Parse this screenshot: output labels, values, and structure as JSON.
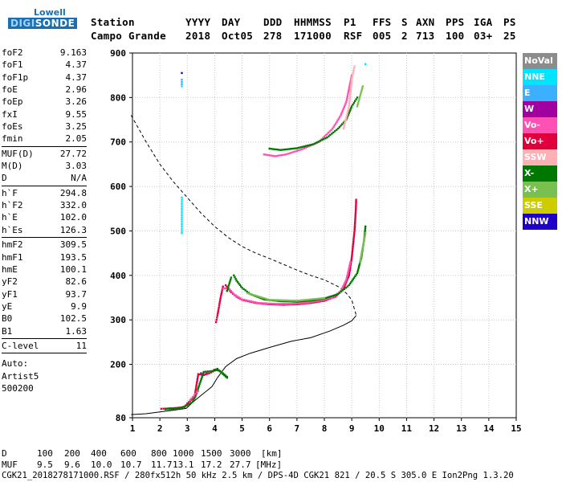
{
  "logo": {
    "line1": "Lowell",
    "line2_a": "DIGI",
    "line2_b": "SONDE"
  },
  "header": {
    "labels": [
      "Station",
      "YYYY",
      "DAY",
      "DDD",
      "HHMMSS",
      "P1",
      "FFS",
      "S",
      "AXN",
      "PPS",
      "IGA",
      "PS"
    ],
    "values": [
      "Campo Grande",
      "2018",
      "Oct05",
      "278",
      "171000",
      "RSF",
      "005",
      "2",
      "713",
      "100",
      "03+",
      "25"
    ]
  },
  "params": [
    {
      "group": [
        {
          "name": "foF2",
          "value": "9.163"
        },
        {
          "name": "foF1",
          "value": "4.37"
        },
        {
          "name": "foF1p",
          "value": "4.37"
        },
        {
          "name": "foE",
          "value": "2.96"
        },
        {
          "name": "foEp",
          "value": "3.26"
        },
        {
          "name": "fxI",
          "value": "9.55"
        },
        {
          "name": "foEs",
          "value": "3.25"
        },
        {
          "name": "fmin",
          "value": "2.05"
        }
      ]
    },
    {
      "group": [
        {
          "name": "MUF(D)",
          "value": "27.72"
        },
        {
          "name": "M(D)",
          "value": "3.03"
        },
        {
          "name": "D",
          "value": "N/A"
        }
      ]
    },
    {
      "group": [
        {
          "name": "h`F",
          "value": "294.8"
        },
        {
          "name": "h`F2",
          "value": "332.0"
        },
        {
          "name": "h`E",
          "value": "102.0"
        },
        {
          "name": "h`Es",
          "value": "126.3"
        }
      ]
    },
    {
      "group": [
        {
          "name": "hmF2",
          "value": "309.5"
        },
        {
          "name": "hmF1",
          "value": "193.5"
        },
        {
          "name": "hmE",
          "value": "100.1"
        },
        {
          "name": "yF2",
          "value": "82.6"
        },
        {
          "name": "yF1",
          "value": "93.7"
        },
        {
          "name": "yE",
          "value": "9.9"
        },
        {
          "name": "B0",
          "value": "102.5"
        },
        {
          "name": "B1",
          "value": "1.63"
        }
      ]
    },
    {
      "group": [
        {
          "name": "C-level",
          "value": "11"
        }
      ]
    },
    {
      "group": [
        {
          "name": "Auto:",
          "value": ""
        },
        {
          "name": "Artist5",
          "value": ""
        },
        {
          "name": "500200",
          "value": ""
        }
      ]
    }
  ],
  "legend": [
    {
      "label": "NoVal",
      "color": "#8c8c8c"
    },
    {
      "label": "NNE",
      "color": "#00e5ff"
    },
    {
      "label": "E",
      "color": "#3ab0ff"
    },
    {
      "label": "W",
      "color": "#a000a0"
    },
    {
      "label": "Vo-",
      "color": "#ff50b4"
    },
    {
      "label": "Vo+",
      "color": "#e0003c"
    },
    {
      "label": "SSW",
      "color": "#ffb0b4"
    },
    {
      "label": "X-",
      "color": "#007800"
    },
    {
      "label": "X+",
      "color": "#78c050"
    },
    {
      "label": "SSE",
      "color": "#cccc00"
    },
    {
      "label": "NNW",
      "color": "#1e00c8"
    }
  ],
  "footer": {
    "d_label": "D",
    "d_values": [
      "100",
      "200",
      "400",
      "600",
      "800",
      "1000",
      "1500",
      "3000"
    ],
    "d_unit": "[km]",
    "muf_label": "MUF",
    "muf_values": [
      "9.5",
      "9.6",
      "10.0",
      "10.7",
      "11.7",
      "13.1",
      "17.2",
      "27.7"
    ],
    "muf_unit": "[MHz]",
    "info": "CGK21_2018278171000.RSF / 280fx512h 50 kHz 2.5 km / DPS-4D CGK21 821 / 20.5 S 305.0 E Ion2Png 1.3.20"
  },
  "chart_data": {
    "type": "scatter",
    "xlim": [
      1,
      15
    ],
    "ylim": [
      80,
      900
    ],
    "x_ticks": [
      1,
      2,
      3,
      4,
      5,
      6,
      7,
      8,
      9,
      10,
      11,
      12,
      13,
      14,
      15
    ],
    "y_ticks": [
      80,
      200,
      300,
      400,
      500,
      600,
      700,
      800,
      900
    ],
    "y_tick_labels": [
      "80",
      "200",
      "300",
      "400",
      "500",
      "600",
      "700",
      "800",
      "900"
    ],
    "grid": true,
    "true_height_profile": [
      [
        0.95,
        87
      ],
      [
        1.5,
        89
      ],
      [
        2.0,
        93
      ],
      [
        2.5,
        97
      ],
      [
        2.96,
        101
      ],
      [
        3.2,
        115
      ],
      [
        3.6,
        135
      ],
      [
        3.9,
        150
      ],
      [
        4.1,
        170
      ],
      [
        4.4,
        195
      ],
      [
        4.8,
        213
      ],
      [
        5.3,
        225
      ],
      [
        6.0,
        238
      ],
      [
        6.8,
        252
      ],
      [
        7.5,
        260
      ],
      [
        8.2,
        275
      ],
      [
        8.7,
        288
      ],
      [
        9.0,
        298
      ],
      [
        9.163,
        310
      ]
    ],
    "mufd_curve": [
      [
        0.95,
        760
      ],
      [
        1.5,
        700
      ],
      [
        2.0,
        650
      ],
      [
        2.5,
        610
      ],
      [
        3.0,
        575
      ],
      [
        3.5,
        540
      ],
      [
        4.0,
        510
      ],
      [
        4.5,
        485
      ],
      [
        5.0,
        465
      ],
      [
        5.5,
        450
      ],
      [
        6.0,
        438
      ],
      [
        6.5,
        425
      ],
      [
        7.0,
        412
      ],
      [
        7.5,
        400
      ],
      [
        8.0,
        390
      ],
      [
        8.5,
        375
      ],
      [
        8.8,
        360
      ],
      [
        9.0,
        345
      ],
      [
        9.163,
        310
      ]
    ],
    "series": [
      {
        "name": "Vo+",
        "color": "#e0003c",
        "points": [
          [
            4.05,
            295
          ],
          [
            4.1,
            310
          ],
          [
            4.2,
            345
          ],
          [
            4.3,
            375
          ],
          [
            4.4,
            378
          ],
          [
            4.6,
            362
          ],
          [
            4.8,
            352
          ],
          [
            5.0,
            345
          ],
          [
            5.5,
            338
          ],
          [
            6.0,
            335
          ],
          [
            6.5,
            334
          ],
          [
            7.0,
            335
          ],
          [
            7.5,
            338
          ],
          [
            8.0,
            343
          ],
          [
            8.4,
            352
          ],
          [
            8.7,
            370
          ],
          [
            8.9,
            400
          ],
          [
            9.0,
            440
          ],
          [
            9.1,
            500
          ],
          [
            9.15,
            550
          ],
          [
            9.16,
            570
          ]
        ]
      },
      {
        "name": "Vo-",
        "color": "#ff50b4",
        "points": [
          [
            4.3,
            370
          ],
          [
            4.5,
            372
          ],
          [
            4.7,
            358
          ],
          [
            5.0,
            346
          ],
          [
            5.6,
            338
          ],
          [
            6.2,
            336
          ],
          [
            6.8,
            336
          ],
          [
            7.4,
            339
          ],
          [
            7.9,
            344
          ],
          [
            8.3,
            350
          ],
          [
            8.6,
            365
          ],
          [
            8.8,
            390
          ],
          [
            8.95,
            430
          ],
          [
            5.8,
            672
          ],
          [
            6.2,
            668
          ],
          [
            6.6,
            672
          ],
          [
            7.2,
            684
          ],
          [
            7.8,
            700
          ],
          [
            8.3,
            730
          ],
          [
            8.6,
            760
          ],
          [
            8.8,
            790
          ],
          [
            8.9,
            820
          ],
          [
            9.0,
            850
          ]
        ]
      },
      {
        "name": "X-",
        "color": "#007800",
        "points": [
          [
            4.45,
            365
          ],
          [
            4.6,
            395
          ],
          [
            4.7,
            400
          ],
          [
            4.8,
            388
          ],
          [
            5.0,
            372
          ],
          [
            5.3,
            358
          ],
          [
            5.8,
            346
          ],
          [
            6.4,
            342
          ],
          [
            7.0,
            341
          ],
          [
            7.6,
            344
          ],
          [
            8.0,
            348
          ],
          [
            8.5,
            358
          ],
          [
            8.9,
            378
          ],
          [
            9.2,
            405
          ],
          [
            9.35,
            440
          ],
          [
            9.45,
            480
          ],
          [
            9.5,
            510
          ],
          [
            6.0,
            685
          ],
          [
            6.4,
            682
          ],
          [
            7.0,
            686
          ],
          [
            7.6,
            695
          ],
          [
            8.1,
            710
          ],
          [
            8.5,
            730
          ],
          [
            8.8,
            750
          ],
          [
            9.0,
            780
          ],
          [
            9.2,
            800
          ],
          [
            4.0,
            188
          ],
          [
            4.2,
            185
          ],
          [
            4.45,
            172
          ]
        ]
      },
      {
        "name": "X+",
        "color": "#78c050",
        "points": [
          [
            5.2,
            360
          ],
          [
            6.0,
            345
          ],
          [
            7.0,
            343
          ],
          [
            8.0,
            349
          ],
          [
            9.3,
            430
          ],
          [
            9.5,
            495
          ],
          [
            9.2,
            780
          ],
          [
            9.4,
            825
          ]
        ]
      },
      {
        "name": "SSW",
        "color": "#ffb0b4",
        "points": [
          [
            8.7,
            730
          ],
          [
            8.9,
            780
          ],
          [
            9.0,
            840
          ],
          [
            9.1,
            870
          ]
        ]
      },
      {
        "name": "NNE",
        "color": "#00e5ff",
        "points": [
          [
            2.8,
            495
          ],
          [
            2.8,
            505
          ],
          [
            2.8,
            520
          ],
          [
            2.8,
            530
          ],
          [
            2.8,
            540
          ],
          [
            2.8,
            555
          ],
          [
            2.8,
            565
          ],
          [
            2.8,
            575
          ],
          [
            2.8,
            825
          ],
          [
            9.5,
            875
          ]
        ]
      },
      {
        "name": "E",
        "color": "#3ab0ff",
        "points": [
          [
            2.8,
            830
          ],
          [
            2.8,
            840
          ]
        ]
      },
      {
        "name": "NNW",
        "color": "#1e00c8",
        "points": [
          [
            2.8,
            855
          ]
        ]
      },
      {
        "name": "W",
        "color": "#a000a0",
        "points": [
          [
            3.5,
            180
          ],
          [
            3.6,
            182
          ],
          [
            3.7,
            180
          ]
        ]
      },
      {
        "name": "Es-O",
        "color": "#e0003c",
        "points": [
          [
            2.05,
            100
          ],
          [
            2.3,
            101
          ],
          [
            2.6,
            102
          ],
          [
            2.9,
            104
          ],
          [
            3.0,
            112
          ],
          [
            3.1,
            118
          ],
          [
            3.26,
            125
          ],
          [
            3.4,
            178
          ],
          [
            3.6,
            176
          ],
          [
            3.8,
            180
          ],
          [
            4.0,
            186
          ]
        ]
      },
      {
        "name": "Es-X",
        "color": "#007800",
        "points": [
          [
            2.2,
            99
          ],
          [
            2.5,
            100
          ],
          [
            2.8,
            103
          ],
          [
            3.0,
            108
          ],
          [
            3.2,
            116
          ],
          [
            3.3,
            128
          ],
          [
            3.6,
            183
          ],
          [
            3.9,
            185
          ],
          [
            4.1,
            190
          ],
          [
            4.3,
            178
          ],
          [
            4.45,
            170
          ]
        ]
      },
      {
        "name": "Es-pink",
        "color": "#ff50b4",
        "points": [
          [
            3.1,
            120
          ],
          [
            3.25,
            130
          ],
          [
            3.35,
            138
          ],
          [
            3.4,
            140
          ]
        ]
      }
    ]
  }
}
